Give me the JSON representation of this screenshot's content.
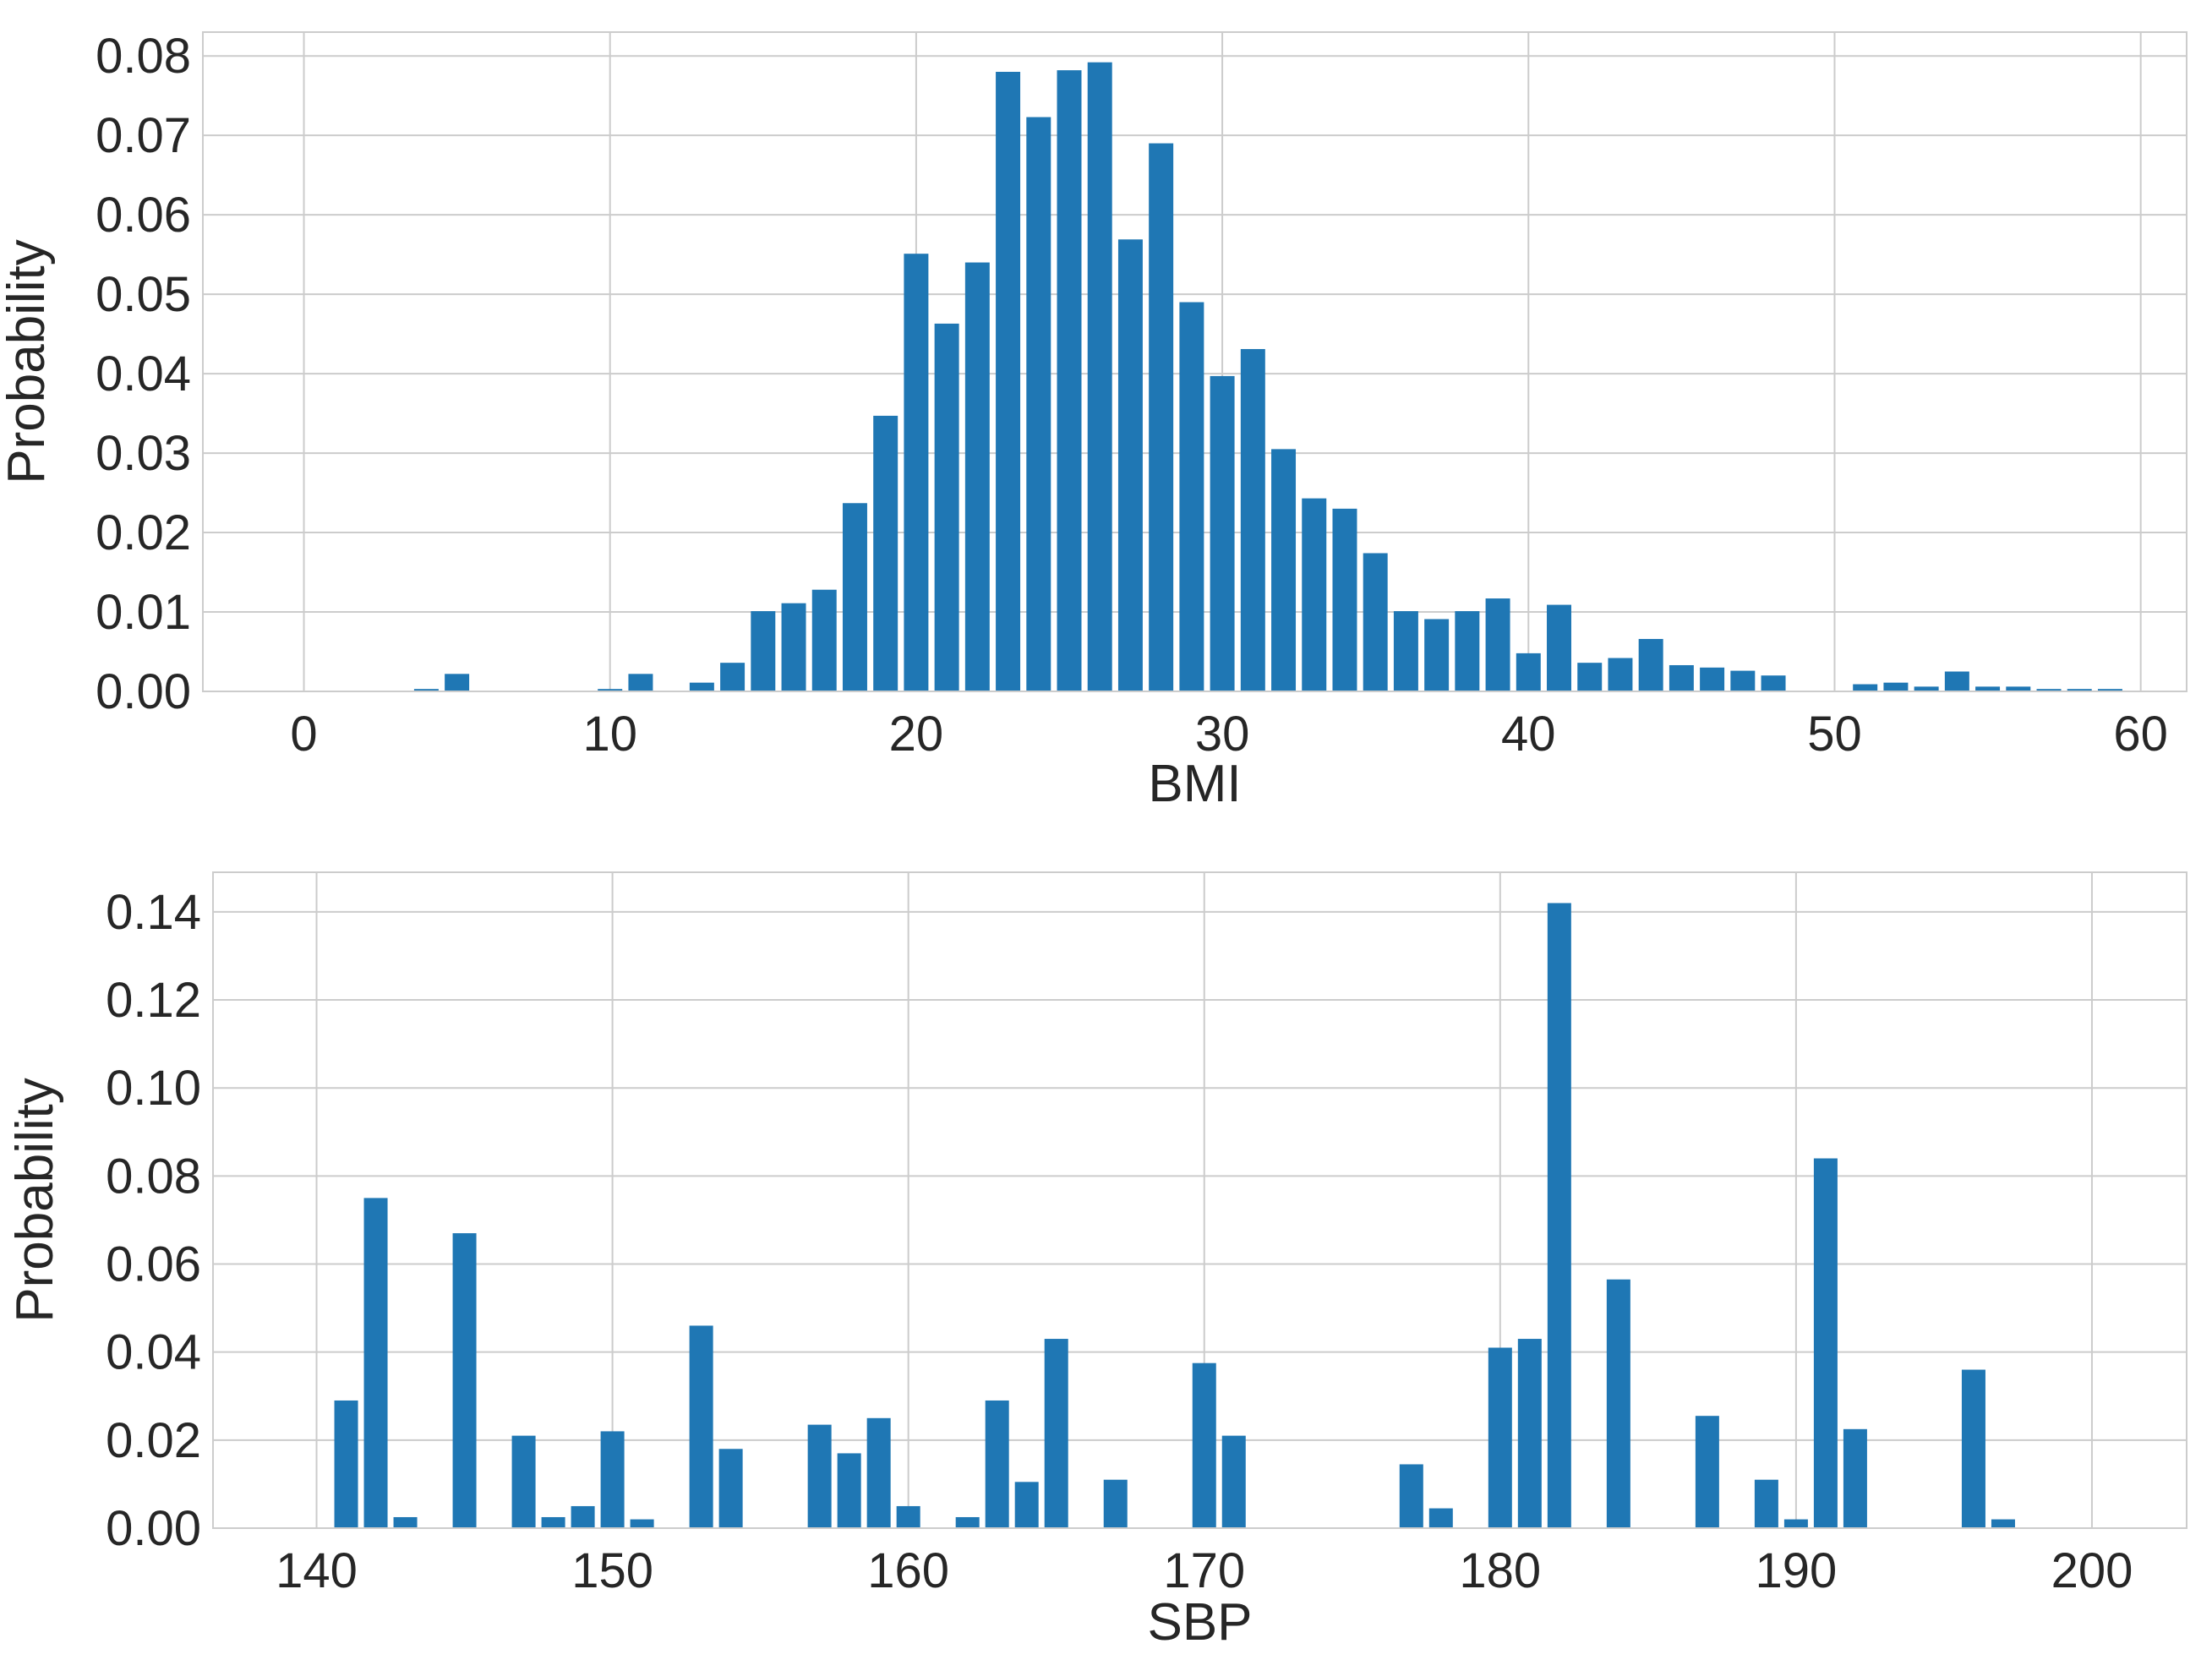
{
  "colors": {
    "bar": "#1f77b4",
    "grid": "#cccccc",
    "spine": "#cccccc",
    "text": "#262626",
    "background": "#ffffff"
  },
  "chart_data": [
    {
      "type": "bar",
      "xlabel": "BMI",
      "ylabel": "Probability",
      "xlim": [
        -3.3,
        61.5
      ],
      "ylim": [
        0,
        0.083
      ],
      "xticks": [
        "0",
        "10",
        "20",
        "30",
        "40",
        "50",
        "60"
      ],
      "yticks": [
        "0.00",
        "0.01",
        "0.02",
        "0.03",
        "0.04",
        "0.05",
        "0.06",
        "0.07",
        "0.08"
      ],
      "grid": true,
      "legend": "none",
      "bar_width": 0.8,
      "x": [
        4,
        5,
        10,
        11,
        13,
        14,
        15,
        16,
        17,
        18,
        19,
        20,
        21,
        22,
        23,
        24,
        25,
        26,
        27,
        28,
        29,
        30,
        31,
        32,
        33,
        34,
        35,
        36,
        37,
        38,
        39,
        40,
        41,
        42,
        43,
        44,
        45,
        46,
        47,
        48,
        51,
        52,
        53,
        54,
        55,
        56,
        57,
        58,
        59
      ],
      "values": [
        0.0003,
        0.0022,
        0.0003,
        0.0022,
        0.0011,
        0.0036,
        0.0101,
        0.0111,
        0.0128,
        0.0237,
        0.0347,
        0.0551,
        0.0463,
        0.054,
        0.078,
        0.0723,
        0.0782,
        0.0792,
        0.0569,
        0.069,
        0.049,
        0.0397,
        0.0431,
        0.0305,
        0.0243,
        0.023,
        0.0174,
        0.0101,
        0.0091,
        0.0101,
        0.0117,
        0.0048,
        0.0109,
        0.0036,
        0.0042,
        0.0066,
        0.0033,
        0.003,
        0.0026,
        0.002,
        0.0009,
        0.0011,
        0.0006,
        0.0025,
        0.0006,
        0.0006,
        0.0003,
        0.0003,
        0.0003
      ]
    },
    {
      "type": "bar",
      "xlabel": "SBP",
      "ylabel": "Probability",
      "xlim": [
        136.5,
        203.2
      ],
      "ylim": [
        0,
        0.149
      ],
      "xticks": [
        "140",
        "150",
        "160",
        "170",
        "180",
        "190",
        "200"
      ],
      "yticks": [
        "0.00",
        "0.02",
        "0.04",
        "0.06",
        "0.08",
        "0.10",
        "0.12",
        "0.14"
      ],
      "grid": true,
      "legend": "none",
      "bar_width": 0.8,
      "x": [
        141,
        142,
        143,
        145,
        147,
        148,
        149,
        150,
        151,
        153,
        154,
        157,
        158,
        159,
        160,
        162,
        163,
        164,
        165,
        167,
        170,
        171,
        177,
        178,
        180,
        181,
        182,
        184,
        187,
        189,
        190,
        191,
        192,
        196,
        197
      ],
      "values": [
        0.029,
        0.075,
        0.0025,
        0.067,
        0.021,
        0.0025,
        0.005,
        0.022,
        0.002,
        0.046,
        0.018,
        0.0235,
        0.017,
        0.025,
        0.005,
        0.0025,
        0.029,
        0.0105,
        0.043,
        0.011,
        0.0375,
        0.021,
        0.0145,
        0.0045,
        0.041,
        0.043,
        0.142,
        0.0565,
        0.0255,
        0.011,
        0.002,
        0.084,
        0.0225,
        0.036,
        0.002
      ]
    }
  ]
}
